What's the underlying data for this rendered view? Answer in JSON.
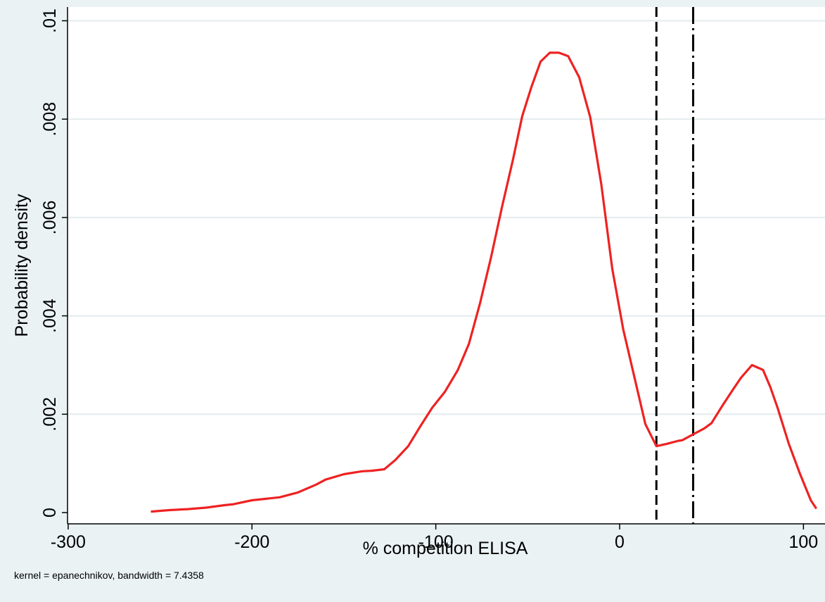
{
  "chart_data": {
    "type": "line",
    "title": "",
    "xlabel": "% competition ELISA",
    "ylabel": "Probability density",
    "note": "kernel = epanechnikov, bandwidth = 7.4358",
    "xlim": [
      -305,
      107
    ],
    "ylim": [
      0,
      0.01
    ],
    "x_ticks": [
      -300,
      -200,
      -100,
      0,
      100
    ],
    "x_tick_labels": [
      "-300",
      "-200",
      "-100",
      "0",
      "100"
    ],
    "y_ticks": [
      0,
      0.002,
      0.004,
      0.006,
      0.008,
      0.01
    ],
    "y_tick_labels": [
      "0",
      ".002",
      ".004",
      ".006",
      ".008",
      ".01"
    ],
    "grid": "horizontal",
    "line_color": "#ee2222",
    "reference_lines": [
      {
        "x": 20,
        "style": "dashed",
        "color": "#000000"
      },
      {
        "x": 40,
        "style": "dash-dot",
        "color": "#000000"
      }
    ],
    "series": [
      {
        "x": [
          -255,
          -245,
          -235,
          -225,
          -215,
          -210,
          -200,
          -195,
          -185,
          -175,
          -165,
          -160,
          -150,
          -140,
          -135,
          -128,
          -122,
          -115,
          -108,
          -102,
          -95,
          -88,
          -82,
          -76,
          -70,
          -64,
          -58,
          -53,
          -48,
          -43,
          -38,
          -33,
          -28,
          -22,
          -16,
          -10,
          -4,
          2,
          8,
          14,
          20,
          26,
          32,
          34,
          40,
          46,
          50,
          56,
          62,
          66,
          72,
          78,
          82,
          86,
          92,
          98,
          104,
          107
        ],
        "y": [
          2e-05,
          5e-05,
          7e-05,
          0.0001,
          0.00015,
          0.00017,
          0.00025,
          0.00027,
          0.00031,
          0.00041,
          0.00057,
          0.00067,
          0.00078,
          0.00084,
          0.00085,
          0.00088,
          0.00107,
          0.00135,
          0.00178,
          0.00213,
          0.00246,
          0.0029,
          0.00343,
          0.00425,
          0.00518,
          0.00621,
          0.00718,
          0.00806,
          0.00865,
          0.00917,
          0.00935,
          0.00935,
          0.00928,
          0.00885,
          0.00804,
          0.00668,
          0.00496,
          0.00372,
          0.00276,
          0.0018,
          0.00135,
          0.0014,
          0.00146,
          0.00147,
          0.00159,
          0.00171,
          0.00182,
          0.00218,
          0.00252,
          0.00274,
          0.003,
          0.0029,
          0.00255,
          0.00212,
          0.0014,
          0.0008,
          0.00025,
          8e-05
        ]
      }
    ]
  }
}
